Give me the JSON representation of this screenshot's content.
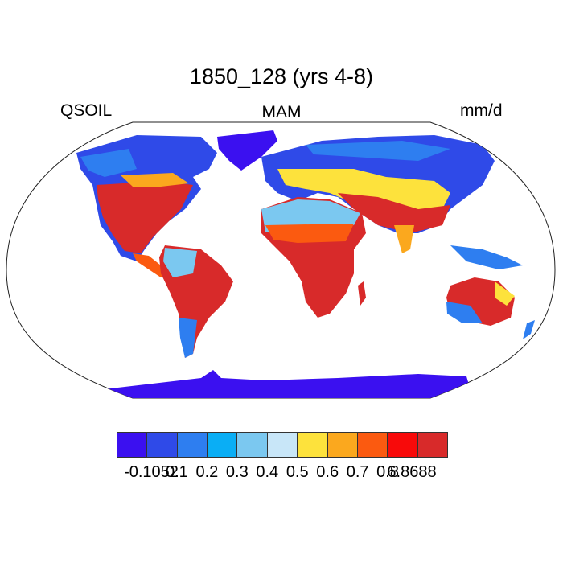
{
  "title": "1850_128 (yrs 4-8)",
  "left_label": "QSOIL",
  "center_label": "MAM",
  "right_label": "mm/d",
  "colorbar": {
    "colors": [
      "#3b10f0",
      "#2f4ae8",
      "#2e7ef0",
      "#0aaef5",
      "#7bc8f0",
      "#c8e6f8",
      "#fde23c",
      "#fba81e",
      "#fb5a10",
      "#f80a0a",
      "#d82a2a"
    ],
    "tick_labels": [
      "-0.1052",
      "0.1",
      "0.2",
      "0.3",
      "0.4",
      "0.5",
      "0.6",
      "0.7",
      "0.8",
      "6.8688"
    ]
  }
}
